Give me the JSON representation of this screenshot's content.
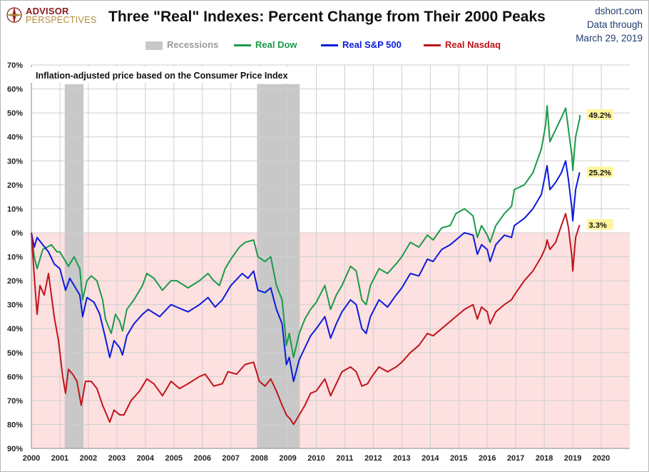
{
  "header": {
    "logo_line1": "ADVISOR",
    "logo_line2": "PERSPECTIVES",
    "title": "Three \"Real\" Indexes: Percent Change from Their 2000 Peaks",
    "source_line1": "dshort.com",
    "source_line2": "Data through",
    "source_line3": "March 29, 2019"
  },
  "chart_data": {
    "type": "line",
    "title": "Three \"Real\" Indexes: Percent Change from Their 2000 Peaks",
    "annotation": "Inflation-adjusted  price based on the Consumer Price Index",
    "xlim": [
      2000,
      2021
    ],
    "ylim": [
      -90,
      70
    ],
    "x_ticks": [
      "2000",
      "2001",
      "2002",
      "2003",
      "2004",
      "2005",
      "2006",
      "2007",
      "2008",
      "2009",
      "2010",
      "2011",
      "2012",
      "2013",
      "2014",
      "2015",
      "2016",
      "2017",
      "2018",
      "2019",
      "2020"
    ],
    "y_ticks": [
      {
        "v": 70,
        "label": "70%"
      },
      {
        "v": 60,
        "label": "60%"
      },
      {
        "v": 50,
        "label": "50%"
      },
      {
        "v": 40,
        "label": "40%"
      },
      {
        "v": 30,
        "label": "30%"
      },
      {
        "v": 20,
        "label": "20%"
      },
      {
        "v": 10,
        "label": "10%"
      },
      {
        "v": 0,
        "label": "0%"
      },
      {
        "v": -10,
        "label": "10%"
      },
      {
        "v": -20,
        "label": "20%"
      },
      {
        "v": -30,
        "label": "30%"
      },
      {
        "v": -40,
        "label": "40%"
      },
      {
        "v": -50,
        "label": "50%"
      },
      {
        "v": -60,
        "label": "60%"
      },
      {
        "v": -70,
        "label": "70%"
      },
      {
        "v": -80,
        "label": "80%"
      },
      {
        "v": -90,
        "label": "90%"
      }
    ],
    "grid": true,
    "negative_region_color": "#fde0e0",
    "recessions": {
      "label": "Recessions",
      "color": "#c8c8c8",
      "periods": [
        [
          2001.17,
          2001.83
        ],
        [
          2007.92,
          2009.42
        ]
      ]
    },
    "legend": {
      "placement": "top",
      "recession_label": "Recessions"
    },
    "series": [
      {
        "name": "Real Dow",
        "color": "#1a9a4a",
        "end_label": "49.2%",
        "end_value": 49.2,
        "points": [
          [
            2000.0,
            0
          ],
          [
            2000.1,
            -10
          ],
          [
            2000.2,
            -15
          ],
          [
            2000.4,
            -7
          ],
          [
            2000.7,
            -5
          ],
          [
            2000.9,
            -8
          ],
          [
            2001.0,
            -8
          ],
          [
            2001.3,
            -14
          ],
          [
            2001.5,
            -10
          ],
          [
            2001.7,
            -15
          ],
          [
            2001.8,
            -28
          ],
          [
            2001.95,
            -20
          ],
          [
            2002.1,
            -18
          ],
          [
            2002.3,
            -20
          ],
          [
            2002.5,
            -28
          ],
          [
            2002.6,
            -36
          ],
          [
            2002.8,
            -42
          ],
          [
            2002.95,
            -34
          ],
          [
            2003.1,
            -37
          ],
          [
            2003.2,
            -41
          ],
          [
            2003.35,
            -32
          ],
          [
            2003.6,
            -28
          ],
          [
            2003.9,
            -22
          ],
          [
            2004.05,
            -17
          ],
          [
            2004.3,
            -19
          ],
          [
            2004.6,
            -24
          ],
          [
            2004.9,
            -20
          ],
          [
            2005.1,
            -20
          ],
          [
            2005.5,
            -23
          ],
          [
            2005.9,
            -20
          ],
          [
            2006.2,
            -17
          ],
          [
            2006.4,
            -20
          ],
          [
            2006.6,
            -22
          ],
          [
            2006.8,
            -15
          ],
          [
            2007.0,
            -11
          ],
          [
            2007.3,
            -6
          ],
          [
            2007.5,
            -4
          ],
          [
            2007.8,
            -3
          ],
          [
            2007.95,
            -10
          ],
          [
            2008.2,
            -12
          ],
          [
            2008.4,
            -10
          ],
          [
            2008.6,
            -22
          ],
          [
            2008.8,
            -28
          ],
          [
            2008.95,
            -47
          ],
          [
            2009.05,
            -42
          ],
          [
            2009.2,
            -52
          ],
          [
            2009.4,
            -42
          ],
          [
            2009.6,
            -36
          ],
          [
            2009.8,
            -32
          ],
          [
            2010.0,
            -29
          ],
          [
            2010.3,
            -22
          ],
          [
            2010.5,
            -32
          ],
          [
            2010.7,
            -26
          ],
          [
            2010.9,
            -22
          ],
          [
            2011.2,
            -14
          ],
          [
            2011.4,
            -16
          ],
          [
            2011.6,
            -28
          ],
          [
            2011.75,
            -30
          ],
          [
            2011.9,
            -22
          ],
          [
            2012.2,
            -15
          ],
          [
            2012.5,
            -17
          ],
          [
            2012.8,
            -13
          ],
          [
            2013.0,
            -10
          ],
          [
            2013.3,
            -4
          ],
          [
            2013.6,
            -6
          ],
          [
            2013.9,
            -1
          ],
          [
            2014.1,
            -3
          ],
          [
            2014.4,
            2
          ],
          [
            2014.7,
            3
          ],
          [
            2014.9,
            8
          ],
          [
            2015.2,
            10
          ],
          [
            2015.5,
            7
          ],
          [
            2015.65,
            -2
          ],
          [
            2015.8,
            3
          ],
          [
            2016.0,
            -1
          ],
          [
            2016.1,
            -4
          ],
          [
            2016.3,
            3
          ],
          [
            2016.6,
            8
          ],
          [
            2016.85,
            11
          ],
          [
            2016.95,
            18
          ],
          [
            2017.3,
            20
          ],
          [
            2017.6,
            25
          ],
          [
            2017.9,
            35
          ],
          [
            2018.05,
            45
          ],
          [
            2018.1,
            53
          ],
          [
            2018.2,
            38
          ],
          [
            2018.4,
            43
          ],
          [
            2018.6,
            48
          ],
          [
            2018.75,
            52
          ],
          [
            2018.85,
            43
          ],
          [
            2018.97,
            32
          ],
          [
            2019.0,
            26
          ],
          [
            2019.1,
            40
          ],
          [
            2019.25,
            48
          ],
          [
            2019.24,
            49.2
          ]
        ]
      },
      {
        "name": "Real S&P 500",
        "color": "#0a1adc",
        "end_label": "25.2%",
        "end_value": 25.2,
        "points": [
          [
            2000.0,
            0
          ],
          [
            2000.1,
            -6
          ],
          [
            2000.2,
            -2
          ],
          [
            2000.4,
            -5
          ],
          [
            2000.6,
            -8
          ],
          [
            2000.8,
            -13
          ],
          [
            2001.0,
            -15
          ],
          [
            2001.2,
            -24
          ],
          [
            2001.35,
            -19
          ],
          [
            2001.7,
            -26
          ],
          [
            2001.8,
            -35
          ],
          [
            2001.95,
            -27
          ],
          [
            2002.2,
            -29
          ],
          [
            2002.4,
            -34
          ],
          [
            2002.6,
            -44
          ],
          [
            2002.75,
            -52
          ],
          [
            2002.9,
            -45
          ],
          [
            2003.1,
            -48
          ],
          [
            2003.2,
            -51
          ],
          [
            2003.35,
            -43
          ],
          [
            2003.6,
            -38
          ],
          [
            2003.9,
            -34
          ],
          [
            2004.1,
            -32
          ],
          [
            2004.5,
            -35
          ],
          [
            2004.9,
            -30
          ],
          [
            2005.1,
            -31
          ],
          [
            2005.5,
            -33
          ],
          [
            2005.9,
            -30
          ],
          [
            2006.2,
            -27
          ],
          [
            2006.45,
            -31
          ],
          [
            2006.7,
            -28
          ],
          [
            2007.0,
            -22
          ],
          [
            2007.4,
            -17
          ],
          [
            2007.6,
            -19
          ],
          [
            2007.8,
            -16
          ],
          [
            2007.95,
            -24
          ],
          [
            2008.2,
            -25
          ],
          [
            2008.4,
            -23
          ],
          [
            2008.6,
            -32
          ],
          [
            2008.8,
            -38
          ],
          [
            2008.95,
            -55
          ],
          [
            2009.05,
            -52
          ],
          [
            2009.2,
            -62
          ],
          [
            2009.4,
            -53
          ],
          [
            2009.6,
            -48
          ],
          [
            2009.8,
            -43
          ],
          [
            2010.0,
            -40
          ],
          [
            2010.3,
            -35
          ],
          [
            2010.5,
            -44
          ],
          [
            2010.7,
            -38
          ],
          [
            2010.9,
            -33
          ],
          [
            2011.2,
            -28
          ],
          [
            2011.4,
            -30
          ],
          [
            2011.6,
            -40
          ],
          [
            2011.75,
            -42
          ],
          [
            2011.9,
            -35
          ],
          [
            2012.2,
            -28
          ],
          [
            2012.5,
            -31
          ],
          [
            2012.8,
            -26
          ],
          [
            2013.0,
            -23
          ],
          [
            2013.3,
            -17
          ],
          [
            2013.6,
            -18
          ],
          [
            2013.9,
            -11
          ],
          [
            2014.1,
            -12
          ],
          [
            2014.4,
            -7
          ],
          [
            2014.7,
            -5
          ],
          [
            2014.9,
            -3
          ],
          [
            2015.2,
            0
          ],
          [
            2015.5,
            -1
          ],
          [
            2015.65,
            -9
          ],
          [
            2015.8,
            -5
          ],
          [
            2016.0,
            -7
          ],
          [
            2016.1,
            -12
          ],
          [
            2016.3,
            -5
          ],
          [
            2016.6,
            -1
          ],
          [
            2016.85,
            -2
          ],
          [
            2016.95,
            3
          ],
          [
            2017.3,
            6
          ],
          [
            2017.6,
            10
          ],
          [
            2017.9,
            16
          ],
          [
            2018.05,
            25
          ],
          [
            2018.1,
            28
          ],
          [
            2018.2,
            18
          ],
          [
            2018.4,
            21
          ],
          [
            2018.6,
            25
          ],
          [
            2018.75,
            30
          ],
          [
            2018.85,
            22
          ],
          [
            2018.97,
            10
          ],
          [
            2019.0,
            5
          ],
          [
            2019.1,
            18
          ],
          [
            2019.24,
            25.2
          ]
        ]
      },
      {
        "name": "Real Nasdaq",
        "color": "#c0141c",
        "end_label": "3.3%",
        "end_value": 3.3,
        "points": [
          [
            2000.0,
            0
          ],
          [
            2000.1,
            -18
          ],
          [
            2000.2,
            -34
          ],
          [
            2000.3,
            -22
          ],
          [
            2000.45,
            -26
          ],
          [
            2000.6,
            -17
          ],
          [
            2000.8,
            -35
          ],
          [
            2000.95,
            -45
          ],
          [
            2001.1,
            -60
          ],
          [
            2001.2,
            -67
          ],
          [
            2001.3,
            -57
          ],
          [
            2001.45,
            -59
          ],
          [
            2001.6,
            -62
          ],
          [
            2001.75,
            -72
          ],
          [
            2001.9,
            -62
          ],
          [
            2002.1,
            -62
          ],
          [
            2002.3,
            -65
          ],
          [
            2002.5,
            -72
          ],
          [
            2002.75,
            -79
          ],
          [
            2002.9,
            -74
          ],
          [
            2003.1,
            -76
          ],
          [
            2003.25,
            -76
          ],
          [
            2003.5,
            -70
          ],
          [
            2003.8,
            -66
          ],
          [
            2004.05,
            -61
          ],
          [
            2004.3,
            -63
          ],
          [
            2004.6,
            -68
          ],
          [
            2004.9,
            -62
          ],
          [
            2005.2,
            -65
          ],
          [
            2005.5,
            -63
          ],
          [
            2005.9,
            -60
          ],
          [
            2006.1,
            -59
          ],
          [
            2006.4,
            -64
          ],
          [
            2006.7,
            -63
          ],
          [
            2006.9,
            -58
          ],
          [
            2007.2,
            -59
          ],
          [
            2007.5,
            -55
          ],
          [
            2007.8,
            -54
          ],
          [
            2008.0,
            -62
          ],
          [
            2008.2,
            -64
          ],
          [
            2008.4,
            -61
          ],
          [
            2008.6,
            -66
          ],
          [
            2008.8,
            -72
          ],
          [
            2008.95,
            -76
          ],
          [
            2009.1,
            -78
          ],
          [
            2009.2,
            -80
          ],
          [
            2009.4,
            -76
          ],
          [
            2009.6,
            -72
          ],
          [
            2009.8,
            -67
          ],
          [
            2010.0,
            -66
          ],
          [
            2010.3,
            -61
          ],
          [
            2010.5,
            -68
          ],
          [
            2010.7,
            -63
          ],
          [
            2010.9,
            -58
          ],
          [
            2011.2,
            -56
          ],
          [
            2011.4,
            -58
          ],
          [
            2011.6,
            -64
          ],
          [
            2011.8,
            -63
          ],
          [
            2011.95,
            -60
          ],
          [
            2012.2,
            -56
          ],
          [
            2012.5,
            -58
          ],
          [
            2012.8,
            -56
          ],
          [
            2013.0,
            -54
          ],
          [
            2013.3,
            -50
          ],
          [
            2013.6,
            -47
          ],
          [
            2013.9,
            -42
          ],
          [
            2014.1,
            -43
          ],
          [
            2014.4,
            -40
          ],
          [
            2014.7,
            -37
          ],
          [
            2014.9,
            -35
          ],
          [
            2015.2,
            -32
          ],
          [
            2015.5,
            -30
          ],
          [
            2015.65,
            -36
          ],
          [
            2015.8,
            -31
          ],
          [
            2016.0,
            -33
          ],
          [
            2016.1,
            -38
          ],
          [
            2016.3,
            -33
          ],
          [
            2016.6,
            -30
          ],
          [
            2016.85,
            -28
          ],
          [
            2016.95,
            -26
          ],
          [
            2017.3,
            -20
          ],
          [
            2017.6,
            -16
          ],
          [
            2017.9,
            -10
          ],
          [
            2018.05,
            -6
          ],
          [
            2018.1,
            -3
          ],
          [
            2018.2,
            -7
          ],
          [
            2018.4,
            -4
          ],
          [
            2018.6,
            3
          ],
          [
            2018.75,
            8
          ],
          [
            2018.85,
            2
          ],
          [
            2018.97,
            -10
          ],
          [
            2019.0,
            -16
          ],
          [
            2019.1,
            -2
          ],
          [
            2019.24,
            3.3
          ]
        ]
      }
    ]
  }
}
